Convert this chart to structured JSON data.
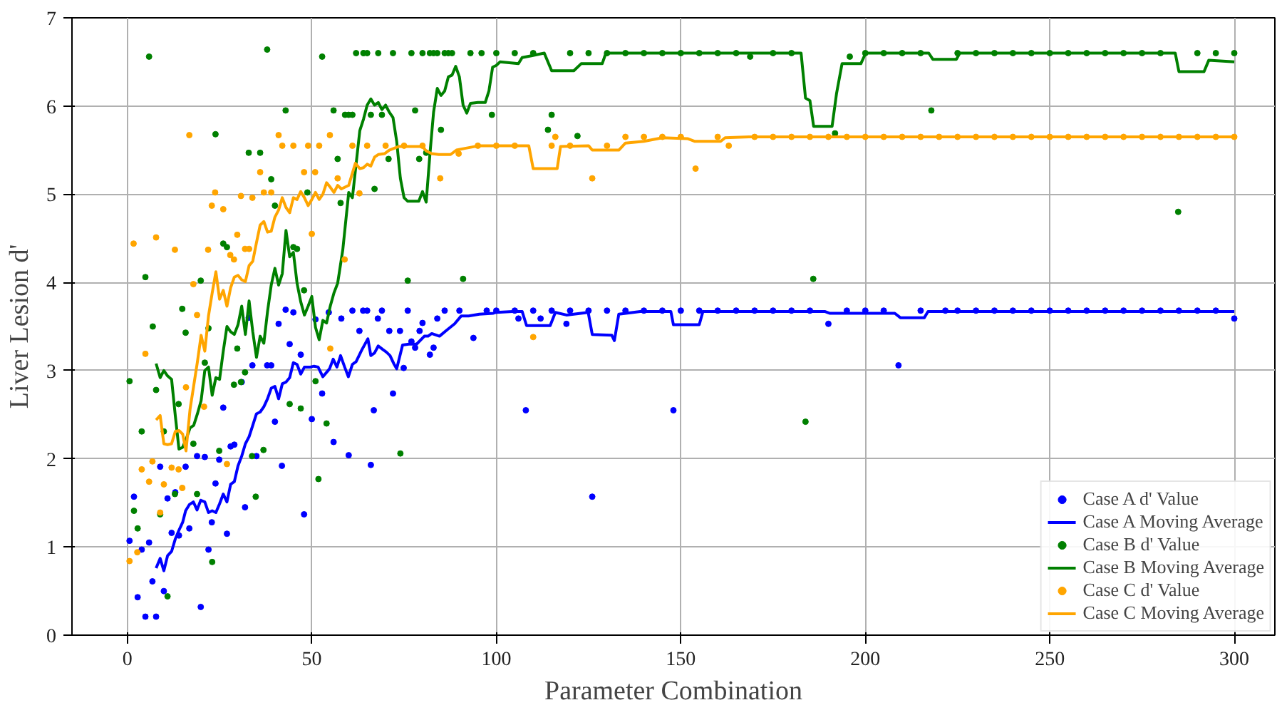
{
  "chart_data": {
    "type": "scatter",
    "xlabel": "Parameter Combination",
    "ylabel": "Liver Lesion d'",
    "xlim": [
      -15,
      311
    ],
    "ylim": [
      0,
      7
    ],
    "xticks": [
      0,
      50,
      100,
      150,
      200,
      250,
      300
    ],
    "yticks": [
      0,
      1,
      2,
      3,
      4,
      5,
      6,
      7
    ],
    "grid": true,
    "legend": "bottom right",
    "line_style": "solid",
    "series": [
      {
        "name": "Case A d' Value",
        "marker": "circle",
        "color": "#0000ff",
        "x": [
          0.6,
          1.8,
          2.8,
          3.9,
          4.9,
          5.9,
          6.8,
          7.8,
          8.9,
          9.9,
          10.9,
          12,
          13,
          14,
          15.8,
          16.8,
          18.9,
          19.9,
          21,
          22,
          22.9,
          23.9,
          24.9,
          26,
          27,
          28,
          29,
          31,
          31.9,
          32.9,
          33.9,
          35,
          37.9,
          39,
          40,
          41,
          41.9,
          42.9,
          44,
          45,
          47,
          47.9,
          50,
          51,
          52.8,
          54.6,
          55.9,
          58,
          60,
          61,
          62.9,
          63.9,
          65,
          66,
          66.8,
          67.9,
          69,
          71,
          72,
          73.9,
          74.9,
          76,
          77,
          78,
          79.2,
          80,
          82,
          83,
          84,
          86,
          90,
          93.8,
          97.4,
          100,
          105,
          106,
          108,
          110,
          112,
          115,
          119,
          120,
          125,
          126,
          130,
          135,
          140,
          145,
          148,
          150,
          155,
          160,
          165,
          170,
          175,
          180,
          185,
          190,
          195,
          200,
          205,
          209,
          215,
          221.7,
          225,
          230,
          235,
          240,
          245,
          250,
          255,
          260,
          265,
          270,
          275,
          280,
          285,
          290,
          295,
          300
        ],
        "values": [
          1.07,
          1.57,
          0.43,
          0.97,
          0.21,
          1.05,
          0.61,
          0.21,
          1.91,
          0.5,
          1.55,
          1.16,
          1.62,
          1.13,
          1.91,
          1.21,
          2.03,
          0.32,
          2.02,
          0.97,
          1.28,
          1.72,
          1.99,
          2.58,
          1.15,
          2.14,
          2.16,
          2.87,
          1.45,
          3.6,
          3.06,
          2.03,
          3.06,
          3.06,
          2.42,
          3.53,
          1.92,
          3.69,
          3.3,
          3.66,
          3.18,
          1.37,
          2.45,
          3.58,
          2.74,
          3.66,
          2.19,
          3.59,
          2.04,
          3.68,
          3.45,
          3.68,
          3.68,
          1.93,
          2.55,
          3.59,
          3.68,
          3.45,
          2.74,
          3.45,
          3.03,
          3.68,
          3.33,
          3.26,
          3.45,
          3.54,
          3.18,
          3.26,
          3.59,
          3.68,
          3.68,
          3.37,
          3.68,
          3.68,
          3.68,
          3.59,
          2.55,
          3.68,
          3.59,
          3.68,
          3.53,
          3.68,
          3.68,
          1.57,
          3.68,
          3.68,
          3.68,
          3.68,
          2.55,
          3.68,
          3.68,
          3.68,
          3.68,
          3.68,
          3.68,
          3.68,
          3.68,
          3.53,
          3.68,
          3.68,
          3.68,
          3.06,
          3.68,
          3.68,
          3.68,
          3.68,
          3.68,
          3.68,
          3.68,
          3.68,
          3.68,
          3.68,
          3.68,
          3.68,
          3.68,
          3.68,
          3.68,
          3.68,
          3.68,
          3.59
        ]
      },
      {
        "name": "Case A Moving Average",
        "type": "line",
        "marker": "none",
        "color": "#0000ff",
        "x": [
          7.8,
          8.9,
          9.9,
          10.9,
          12,
          13,
          14,
          15,
          15.8,
          16.8,
          17.9,
          18.9,
          19.9,
          21,
          22,
          23,
          24,
          25,
          26,
          27,
          28,
          29,
          30,
          31,
          32,
          33,
          34,
          35,
          36,
          37,
          38,
          39,
          40,
          41,
          42,
          43,
          44,
          45,
          46,
          47,
          48,
          49.6,
          50.6,
          51.7,
          53,
          54.8,
          55.8,
          56.8,
          57.8,
          58.9,
          59.9,
          61,
          62,
          63.5,
          65.2,
          66,
          67,
          68,
          69.2,
          70.2,
          71.2,
          72.2,
          73,
          74.6,
          76.3,
          78.4,
          80.5,
          81.5,
          82.5,
          84.6,
          86.6,
          88.7,
          90.5,
          92.5,
          95.4,
          99.2,
          100,
          104.4,
          107,
          108.2,
          114.6,
          116,
          119,
          124.9,
          126,
          131.3,
          132,
          133.2,
          139,
          147.3,
          148,
          155,
          156,
          189,
          190.3,
          208,
          209.5,
          216,
          217,
          300
        ],
        "values": [
          0.76,
          0.87,
          0.73,
          0.9,
          0.95,
          1.09,
          1.19,
          1.28,
          1.41,
          1.48,
          1.51,
          1.42,
          1.53,
          1.51,
          1.39,
          1.41,
          1.39,
          1.49,
          1.6,
          1.51,
          1.71,
          1.74,
          1.92,
          2.03,
          2.17,
          2.25,
          2.38,
          2.51,
          2.53,
          2.59,
          2.68,
          2.8,
          2.82,
          2.68,
          2.85,
          2.87,
          2.92,
          3.09,
          3.07,
          2.96,
          3.04,
          3.04,
          3.05,
          3.04,
          2.93,
          3.02,
          3.13,
          3.04,
          3.17,
          3.04,
          2.93,
          3.07,
          3.1,
          3.23,
          3.36,
          3.17,
          3.2,
          3.28,
          3.24,
          3.21,
          3.17,
          3.08,
          3.02,
          3.29,
          3.3,
          3.3,
          3.39,
          3.39,
          3.42,
          3.39,
          3.46,
          3.53,
          3.62,
          3.62,
          3.64,
          3.65,
          3.66,
          3.67,
          3.67,
          3.51,
          3.51,
          3.66,
          3.63,
          3.66,
          3.41,
          3.4,
          3.34,
          3.64,
          3.67,
          3.67,
          3.52,
          3.52,
          3.67,
          3.67,
          3.65,
          3.65,
          3.6,
          3.6,
          3.67,
          3.67
        ]
      },
      {
        "name": "Case B d' Value",
        "marker": "circle",
        "color": "#008000",
        "x": [
          0.6,
          1.8,
          2.8,
          3.9,
          4.9,
          5.9,
          6.9,
          7.8,
          8.9,
          9.9,
          10.9,
          12.9,
          13.9,
          14.9,
          15.8,
          17.9,
          18.9,
          19.9,
          21,
          22,
          23,
          23.9,
          24.9,
          26,
          27,
          28.9,
          29.8,
          30.8,
          31.9,
          32.9,
          33.8,
          34.8,
          36,
          36.9,
          37.9,
          39,
          40,
          42.9,
          44,
          45,
          46,
          47,
          47.9,
          48.8,
          51,
          51.8,
          52.8,
          54,
          55.9,
          57,
          57.8,
          59,
          60,
          61,
          62,
          64,
          65,
          66,
          67,
          68,
          69,
          70.8,
          72,
          74,
          76,
          77,
          78,
          79.1,
          80,
          81,
          82,
          83,
          84,
          85,
          86,
          87,
          88,
          91,
          93,
          96,
          98.8,
          100,
          105,
          110,
          114,
          115,
          120,
          122,
          125,
          130,
          135,
          140,
          145,
          150,
          155,
          160,
          165,
          168.8,
          175,
          180,
          183.8,
          185.9,
          191.8,
          195.8,
          200,
          205,
          210,
          215,
          217.9,
          225,
          230,
          235,
          240,
          245,
          250,
          255,
          260,
          265,
          270,
          275,
          280,
          284.8,
          290,
          295,
          300
        ],
        "values": [
          2.88,
          1.41,
          1.21,
          2.31,
          4.06,
          6.56,
          3.5,
          2.78,
          1.37,
          2.31,
          0.44,
          1.6,
          2.62,
          3.7,
          3.43,
          2.17,
          1.6,
          4.02,
          3.09,
          3.48,
          0.83,
          5.68,
          2.09,
          4.44,
          4.4,
          2.84,
          3.25,
          2.87,
          2.98,
          5.47,
          2.03,
          1.57,
          5.47,
          2.1,
          6.64,
          5.17,
          4.87,
          5.95,
          2.62,
          4.4,
          4.38,
          2.57,
          3.91,
          5.02,
          2.88,
          1.77,
          6.56,
          2.4,
          5.95,
          5.4,
          4.9,
          5.9,
          5.9,
          5.9,
          6.6,
          6.6,
          6.6,
          5.9,
          5.06,
          6.6,
          5.9,
          5.4,
          6.6,
          2.06,
          4.02,
          6.6,
          5.95,
          5.4,
          6.6,
          5.47,
          6.6,
          6.6,
          6.6,
          5.73,
          6.6,
          6.6,
          6.6,
          4.04,
          6.6,
          6.6,
          5.9,
          6.6,
          6.6,
          6.6,
          5.73,
          5.9,
          6.6,
          5.66,
          6.6,
          6.6,
          6.6,
          6.6,
          6.6,
          6.6,
          6.6,
          6.6,
          6.6,
          6.56,
          6.6,
          6.6,
          2.42,
          4.04,
          5.69,
          6.56,
          6.6,
          6.6,
          6.6,
          6.6,
          5.95,
          6.6,
          6.6,
          6.6,
          6.6,
          6.6,
          6.6,
          6.6,
          6.6,
          6.6,
          6.6,
          6.6,
          6.6,
          4.8,
          6.6,
          6.6,
          6.6
        ]
      },
      {
        "name": "Case B Moving Average",
        "type": "line",
        "marker": "none",
        "color": "#008000",
        "x": [
          7.8,
          8.9,
          9.9,
          10.9,
          12,
          13,
          14,
          15,
          16,
          17,
          18,
          19,
          20,
          21,
          22,
          23,
          24,
          25,
          26,
          27,
          28,
          29,
          30,
          31,
          32,
          33,
          34,
          35,
          36,
          37,
          38,
          39,
          40,
          41,
          42,
          43,
          44,
          45,
          46,
          47,
          48,
          49,
          50,
          51,
          52,
          53,
          54,
          55,
          56,
          57,
          58.4,
          60,
          61,
          62,
          63,
          64,
          65,
          66,
          67,
          68,
          69,
          70,
          71,
          72,
          73,
          74,
          75,
          76,
          77,
          79,
          80,
          81,
          82,
          83,
          84,
          85,
          86,
          87,
          88,
          89,
          90,
          91,
          92,
          93,
          95,
          97,
          98,
          99,
          100,
          101,
          106,
          107,
          109.5,
          113,
          115,
          121,
          123,
          128.7,
          129.7,
          182.6,
          183.8,
          185,
          186,
          191,
          192.2,
          193.7,
          198.8,
          200.1,
          217.2,
          218.3,
          224.7,
          225.6,
          284,
          285,
          291.8,
          293.1,
          300
        ],
        "values": [
          3.08,
          2.92,
          3.0,
          2.94,
          2.9,
          2.49,
          2.11,
          2.13,
          2.23,
          2.35,
          2.38,
          2.51,
          2.66,
          3.0,
          3.04,
          2.72,
          2.92,
          2.9,
          3.22,
          3.5,
          3.44,
          3.41,
          3.52,
          3.73,
          3.41,
          3.79,
          3.44,
          3.15,
          3.39,
          3.31,
          3.67,
          3.97,
          4.16,
          3.97,
          4.1,
          4.59,
          4.29,
          4.34,
          3.99,
          3.78,
          3.63,
          3.73,
          3.84,
          3.49,
          3.35,
          3.57,
          3.54,
          3.73,
          3.88,
          3.99,
          4.37,
          5.02,
          4.96,
          5.34,
          5.72,
          5.85,
          6.01,
          6.08,
          6.01,
          6.04,
          5.96,
          6.01,
          5.93,
          5.87,
          5.6,
          5.18,
          4.96,
          4.92,
          4.92,
          4.92,
          5.03,
          4.91,
          5.45,
          5.93,
          6.2,
          6.12,
          6.17,
          6.33,
          6.35,
          6.45,
          6.33,
          6.01,
          5.92,
          6.03,
          6.04,
          6.04,
          6.17,
          6.44,
          6.46,
          6.5,
          6.48,
          6.55,
          6.57,
          6.6,
          6.4,
          6.4,
          6.48,
          6.48,
          6.6,
          6.6,
          6.09,
          6.06,
          5.77,
          5.77,
          6.14,
          6.48,
          6.48,
          6.6,
          6.6,
          6.53,
          6.53,
          6.6,
          6.6,
          6.39,
          6.39,
          6.52,
          6.5
        ]
      },
      {
        "name": "Case C d' Value",
        "marker": "circle",
        "color": "#ffa500",
        "x": [
          0.6,
          1.7,
          2.7,
          3.9,
          4.9,
          5.9,
          6.8,
          7.8,
          8.9,
          9.9,
          12,
          12.9,
          13.9,
          14.9,
          15.9,
          16.8,
          17.9,
          18.9,
          20.8,
          21.9,
          22.9,
          23.8,
          26,
          27,
          27.9,
          28.9,
          29.8,
          30.8,
          31.9,
          33,
          33.9,
          36,
          37,
          39,
          41,
          42,
          45,
          47.9,
          49,
          50,
          50.9,
          52,
          54.9,
          55,
          57,
          58.9,
          61,
          62.9,
          65,
          70,
          75,
          80,
          84.8,
          89.8,
          95,
          100,
          105,
          110,
          115,
          116,
          120,
          126,
          130,
          135,
          140,
          145,
          150,
          154,
          160,
          163,
          170,
          175,
          180,
          185,
          190,
          195,
          200,
          205,
          210,
          215,
          220,
          225,
          230,
          235,
          240,
          245,
          250,
          255,
          260,
          265,
          270,
          275,
          280,
          285,
          290,
          295,
          300
        ],
        "values": [
          0.84,
          4.44,
          0.94,
          1.88,
          3.19,
          1.74,
          1.97,
          4.51,
          1.39,
          1.71,
          1.9,
          4.37,
          1.88,
          1.67,
          2.81,
          5.67,
          3.98,
          3.63,
          2.59,
          4.37,
          4.87,
          5.02,
          4.83,
          1.94,
          4.31,
          4.26,
          4.54,
          4.98,
          4.38,
          4.38,
          4.96,
          5.25,
          5.02,
          5.02,
          5.67,
          5.55,
          5.55,
          5.25,
          5.55,
          4.55,
          5.25,
          5.55,
          5.67,
          3.25,
          5.18,
          4.26,
          5.55,
          5.01,
          5.55,
          5.55,
          5.55,
          5.55,
          5.18,
          5.46,
          5.55,
          5.55,
          5.55,
          3.38,
          5.55,
          5.65,
          5.55,
          5.18,
          5.55,
          5.65,
          5.65,
          5.65,
          5.65,
          5.29,
          5.65,
          5.55,
          5.65,
          5.65,
          5.65,
          5.65,
          5.65,
          5.65,
          5.65,
          5.65,
          5.65,
          5.65,
          5.65,
          5.65,
          5.65,
          5.65,
          5.65,
          5.65,
          5.65,
          5.65,
          5.65,
          5.65,
          5.65,
          5.65,
          5.65,
          5.65,
          5.65,
          5.65,
          5.65
        ]
      },
      {
        "name": "Case C Moving Average",
        "type": "line",
        "marker": "none",
        "color": "#ffa500",
        "x": [
          7.8,
          8.9,
          9.9,
          10.9,
          12,
          13,
          14,
          15,
          15.9,
          17,
          18,
          19,
          20,
          21,
          22,
          23,
          24,
          25,
          26,
          27,
          28,
          29,
          30,
          31,
          32,
          33,
          34,
          35,
          36,
          37,
          38,
          39,
          40,
          41,
          42,
          43,
          44,
          45,
          46,
          47,
          48,
          49,
          50,
          51,
          52,
          53,
          54,
          55,
          56,
          57,
          58,
          59,
          60,
          61.8,
          63,
          64,
          65,
          66,
          67,
          68,
          69.7,
          71,
          73.5,
          80,
          81,
          82.5,
          84.4,
          87.6,
          89.2,
          91.5,
          95.4,
          100.5,
          108.8,
          110,
          116.5,
          117.4,
          125,
          126,
          133.2,
          135,
          140,
          145,
          151.8,
          153.7,
          160.8,
          162,
          168.5,
          300
        ],
        "values": [
          2.44,
          2.49,
          2.17,
          2.16,
          2.17,
          2.31,
          2.32,
          2.28,
          2.09,
          2.56,
          2.83,
          3.1,
          3.4,
          3.22,
          3.62,
          3.88,
          4.12,
          3.81,
          3.91,
          3.73,
          3.94,
          4.06,
          4.08,
          4.03,
          4.01,
          4.19,
          4.24,
          4.45,
          4.65,
          4.69,
          4.57,
          4.58,
          4.74,
          4.82,
          4.96,
          4.85,
          4.79,
          4.96,
          4.94,
          5.03,
          4.96,
          4.87,
          4.94,
          5.02,
          4.94,
          5.0,
          5.13,
          5.08,
          5.02,
          5.1,
          5.06,
          5.08,
          5.1,
          5.35,
          5.29,
          5.3,
          5.34,
          5.32,
          5.42,
          5.45,
          5.46,
          5.5,
          5.54,
          5.54,
          5.49,
          5.46,
          5.45,
          5.45,
          5.5,
          5.52,
          5.55,
          5.55,
          5.55,
          5.29,
          5.29,
          5.54,
          5.55,
          5.5,
          5.5,
          5.58,
          5.6,
          5.64,
          5.63,
          5.6,
          5.6,
          5.64,
          5.65,
          5.65
        ]
      }
    ]
  }
}
